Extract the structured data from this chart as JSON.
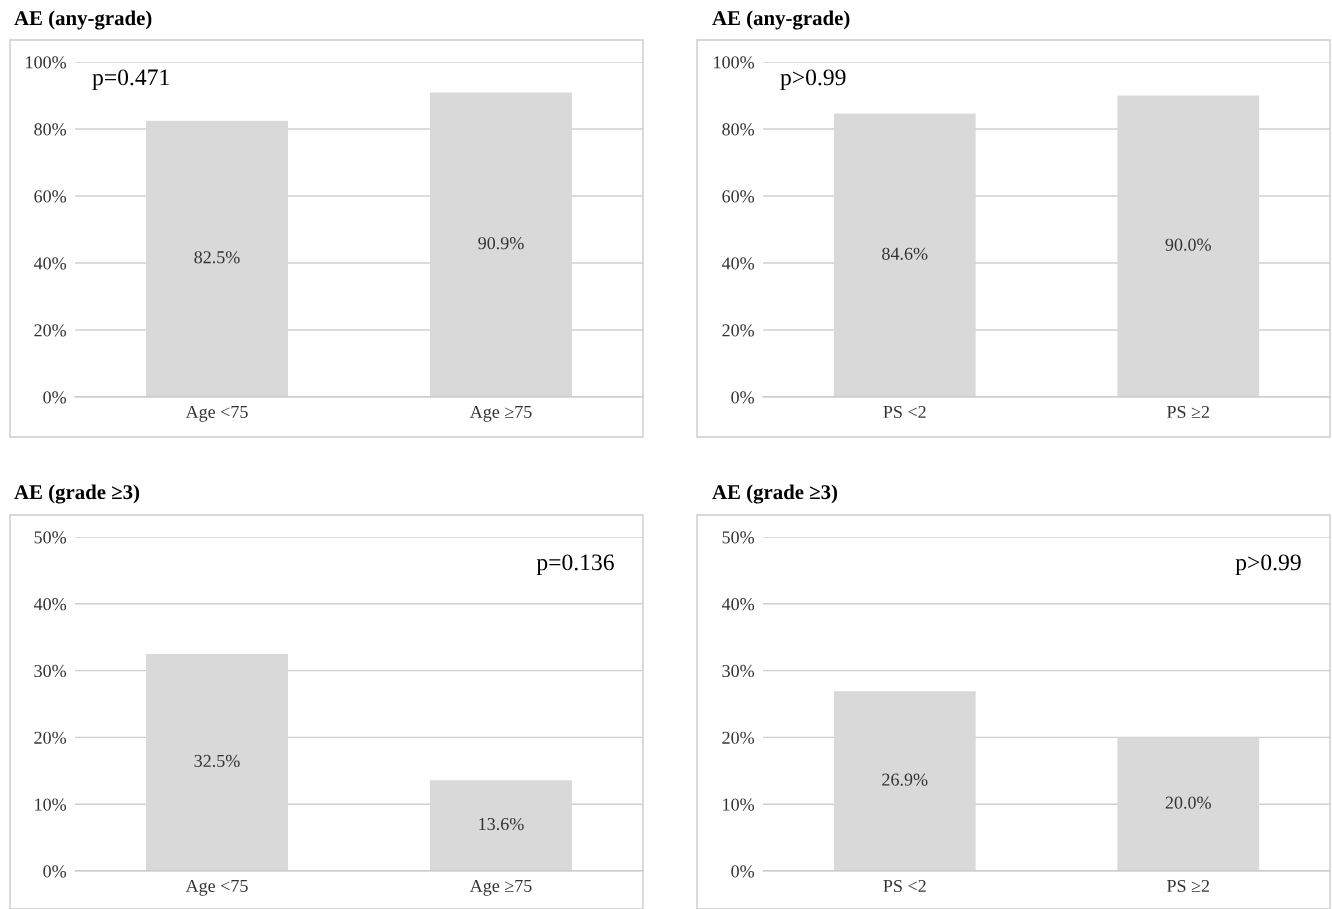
{
  "chart_data": [
    {
      "type": "bar",
      "title": "AE (any-grade)",
      "categories": [
        "Age <75",
        "Age ≥75"
      ],
      "values": [
        82.5,
        90.9
      ],
      "value_labels": [
        "82.5%",
        "90.9%"
      ],
      "color": "#d9d9d9",
      "ylim": [
        0,
        100
      ],
      "yticks": [
        {
          "value": 0,
          "label": "0%"
        },
        {
          "value": 20,
          "label": "20%"
        },
        {
          "value": 40,
          "label": "40%"
        },
        {
          "value": 60,
          "label": "60%"
        },
        {
          "value": 80,
          "label": "80%"
        },
        {
          "value": 100,
          "label": "100%"
        }
      ],
      "grid": "y",
      "annotations": [
        "p=0.471"
      ]
    },
    {
      "type": "bar",
      "title": "AE (any-grade)",
      "categories": [
        "PS <2",
        "PS ≥2"
      ],
      "values": [
        84.6,
        90.0
      ],
      "value_labels": [
        "84.6%",
        "90.0%"
      ],
      "color": "#d9d9d9",
      "ylim": [
        0,
        100
      ],
      "yticks": [
        {
          "value": 0,
          "label": "0%"
        },
        {
          "value": 20,
          "label": "20%"
        },
        {
          "value": 40,
          "label": "40%"
        },
        {
          "value": 60,
          "label": "60%"
        },
        {
          "value": 80,
          "label": "80%"
        },
        {
          "value": 100,
          "label": "100%"
        }
      ],
      "grid": "y",
      "annotations": [
        "p>0.99"
      ]
    },
    {
      "type": "bar",
      "title": "AE (grade ≥3)",
      "categories": [
        "Age <75",
        "Age ≥75"
      ],
      "values": [
        32.5,
        13.6
      ],
      "value_labels": [
        "32.5%",
        "13.6%"
      ],
      "color": "#d9d9d9",
      "ylim": [
        0,
        50
      ],
      "yticks": [
        {
          "value": 0,
          "label": "0%"
        },
        {
          "value": 10,
          "label": "10%"
        },
        {
          "value": 20,
          "label": "20%"
        },
        {
          "value": 30,
          "label": "30%"
        },
        {
          "value": 40,
          "label": "40%"
        },
        {
          "value": 50,
          "label": "50%"
        }
      ],
      "grid": "y",
      "annotations": [
        "p=0.136"
      ]
    },
    {
      "type": "bar",
      "title": "AE (grade ≥3)",
      "categories": [
        "PS <2",
        "PS ≥2"
      ],
      "values": [
        26.9,
        20.0
      ],
      "value_labels": [
        "26.9%",
        "20.0%"
      ],
      "color": "#d9d9d9",
      "ylim": [
        0,
        50
      ],
      "yticks": [
        {
          "value": 0,
          "label": "0%"
        },
        {
          "value": 10,
          "label": "10%"
        },
        {
          "value": 20,
          "label": "20%"
        },
        {
          "value": 30,
          "label": "30%"
        },
        {
          "value": 40,
          "label": "40%"
        },
        {
          "value": 50,
          "label": "50%"
        }
      ],
      "grid": "y",
      "annotations": [
        "p>0.99"
      ]
    }
  ]
}
